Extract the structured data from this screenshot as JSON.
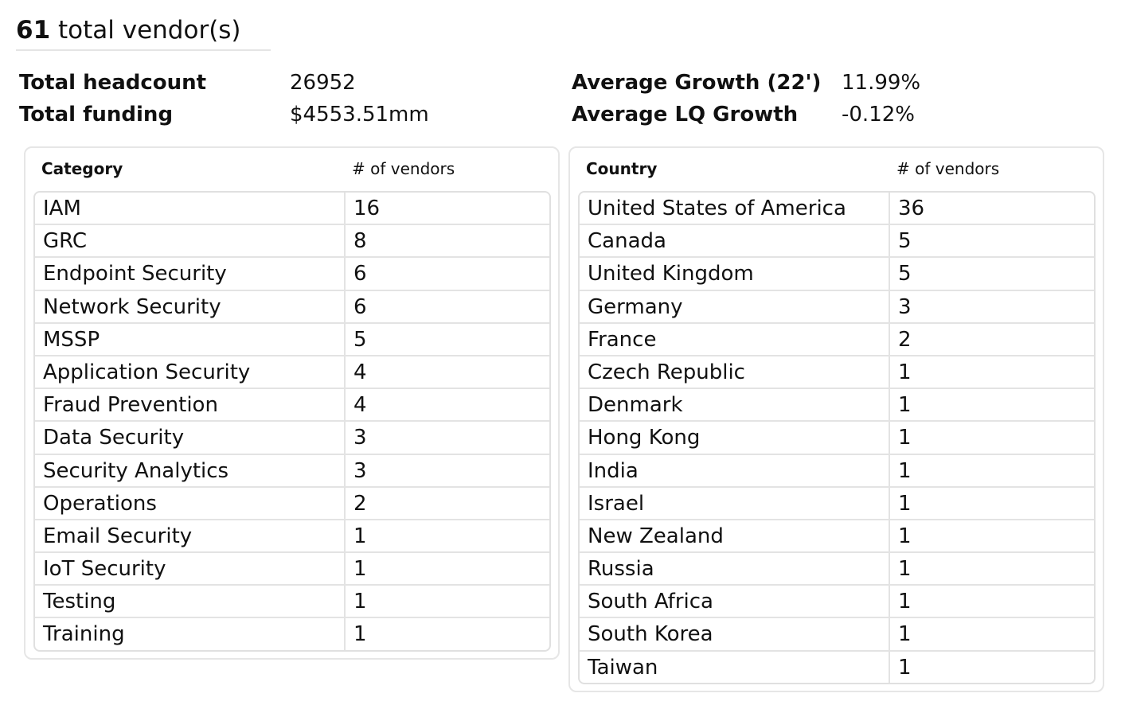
{
  "header": {
    "count": "61",
    "suffix": " total vendor(s)"
  },
  "stats": {
    "total_headcount_label": "Total headcount",
    "total_headcount_value": "26952",
    "total_funding_label": "Total funding",
    "total_funding_value": "$4553.51mm",
    "avg_growth_label": "Average Growth (22')",
    "avg_growth_value": "11.99%",
    "avg_lq_growth_label": "Average LQ Growth",
    "avg_lq_growth_value": "-0.12%"
  },
  "category_table": {
    "col1": "Category",
    "col2": "# of vendors",
    "rows": [
      {
        "name": "IAM",
        "count": "16"
      },
      {
        "name": "GRC",
        "count": "8"
      },
      {
        "name": "Endpoint Security",
        "count": "6"
      },
      {
        "name": "Network Security",
        "count": "6"
      },
      {
        "name": "MSSP",
        "count": "5"
      },
      {
        "name": "Application Security",
        "count": "4"
      },
      {
        "name": "Fraud Prevention",
        "count": "4"
      },
      {
        "name": "Data Security",
        "count": "3"
      },
      {
        "name": "Security Analytics",
        "count": "3"
      },
      {
        "name": "Operations",
        "count": "2"
      },
      {
        "name": "Email Security",
        "count": "1"
      },
      {
        "name": "IoT Security",
        "count": "1"
      },
      {
        "name": "Testing",
        "count": "1"
      },
      {
        "name": "Training",
        "count": "1"
      }
    ]
  },
  "country_table": {
    "col1": "Country",
    "col2": "# of vendors",
    "rows": [
      {
        "name": "United States of America",
        "count": "36"
      },
      {
        "name": "Canada",
        "count": "5"
      },
      {
        "name": "United Kingdom",
        "count": "5"
      },
      {
        "name": "Germany",
        "count": "3"
      },
      {
        "name": "France",
        "count": "2"
      },
      {
        "name": "Czech Republic",
        "count": "1"
      },
      {
        "name": "Denmark",
        "count": "1"
      },
      {
        "name": "Hong Kong",
        "count": "1"
      },
      {
        "name": "India",
        "count": "1"
      },
      {
        "name": "Israel",
        "count": "1"
      },
      {
        "name": "New Zealand",
        "count": "1"
      },
      {
        "name": "Russia",
        "count": "1"
      },
      {
        "name": "South Africa",
        "count": "1"
      },
      {
        "name": "South Korea",
        "count": "1"
      },
      {
        "name": "Taiwan",
        "count": "1"
      }
    ]
  }
}
